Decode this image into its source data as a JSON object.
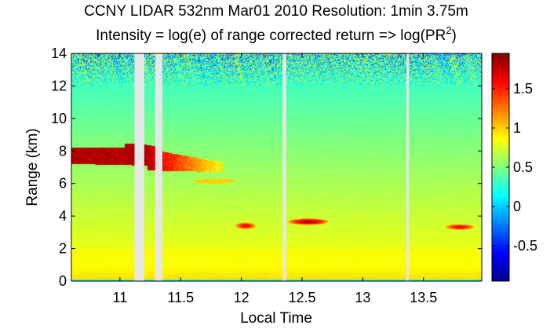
{
  "chart_data": {
    "type": "heatmap",
    "title": "CCNY LIDAR 532nm Mar01 2010 Resolution: 1min 3.75m",
    "subtitle_prefix": "Intensity = log(e) of range corrected return => log(PR",
    "subtitle_superscript": "2",
    "subtitle_suffix": ")",
    "xlabel": "Local Time",
    "ylabel": "Range (km)",
    "xlim": [
      10.6,
      13.98
    ],
    "ylim": [
      0,
      14
    ],
    "xticks": [
      11,
      11.5,
      12,
      12.5,
      13,
      13.5
    ],
    "xtick_labels": [
      "11",
      "11.5",
      "12",
      "12.5",
      "13",
      "13.5"
    ],
    "yticks": [
      0,
      2,
      4,
      6,
      8,
      10,
      12,
      14
    ],
    "ytick_labels": [
      "0",
      "2",
      "4",
      "6",
      "8",
      "10",
      "12",
      "14"
    ],
    "colorbar": {
      "clim": [
        -0.95,
        1.95
      ],
      "ticks": [
        -0.5,
        0,
        0.5,
        1,
        1.5
      ],
      "tick_labels": [
        "-0.5",
        "0",
        "0.5",
        "1",
        "1.5"
      ],
      "colormap": "jet"
    },
    "data_gaps_hours": [
      [
        11.12,
        11.2
      ],
      [
        11.29,
        11.35
      ],
      [
        12.34,
        12.37
      ],
      [
        13.36,
        13.38
      ]
    ],
    "features": [
      {
        "kind": "cirrus-layer",
        "x": [
          10.6,
          11.85
        ],
        "y": [
          6.9,
          8.4
        ],
        "peak_value": 1.9
      },
      {
        "kind": "thin-layer",
        "x": [
          11.6,
          11.95
        ],
        "y": [
          6.0,
          6.3
        ],
        "peak_value": 1.0
      },
      {
        "kind": "cloud",
        "x": [
          11.95,
          12.12
        ],
        "y": [
          3.2,
          3.6
        ],
        "peak_value": 1.6
      },
      {
        "kind": "cloud",
        "x": [
          12.38,
          12.72
        ],
        "y": [
          3.45,
          3.85
        ],
        "peak_value": 1.8
      },
      {
        "kind": "cloud",
        "x": [
          13.68,
          13.92
        ],
        "y": [
          3.15,
          3.5
        ],
        "peak_value": 1.6
      },
      {
        "kind": "boundary-layer",
        "x": [
          10.6,
          13.98
        ],
        "y": [
          0.1,
          1.7
        ],
        "peak_value": 1.0
      },
      {
        "kind": "surface-layer",
        "x": [
          10.6,
          13.98
        ],
        "y": [
          0,
          0.12
        ],
        "peak_value": -0.2
      },
      {
        "kind": "noise-region",
        "x": [
          10.6,
          13.98
        ],
        "y": [
          12.0,
          14.0
        ],
        "peak_value": 0.2
      }
    ],
    "grid": false,
    "legend": "none"
  }
}
